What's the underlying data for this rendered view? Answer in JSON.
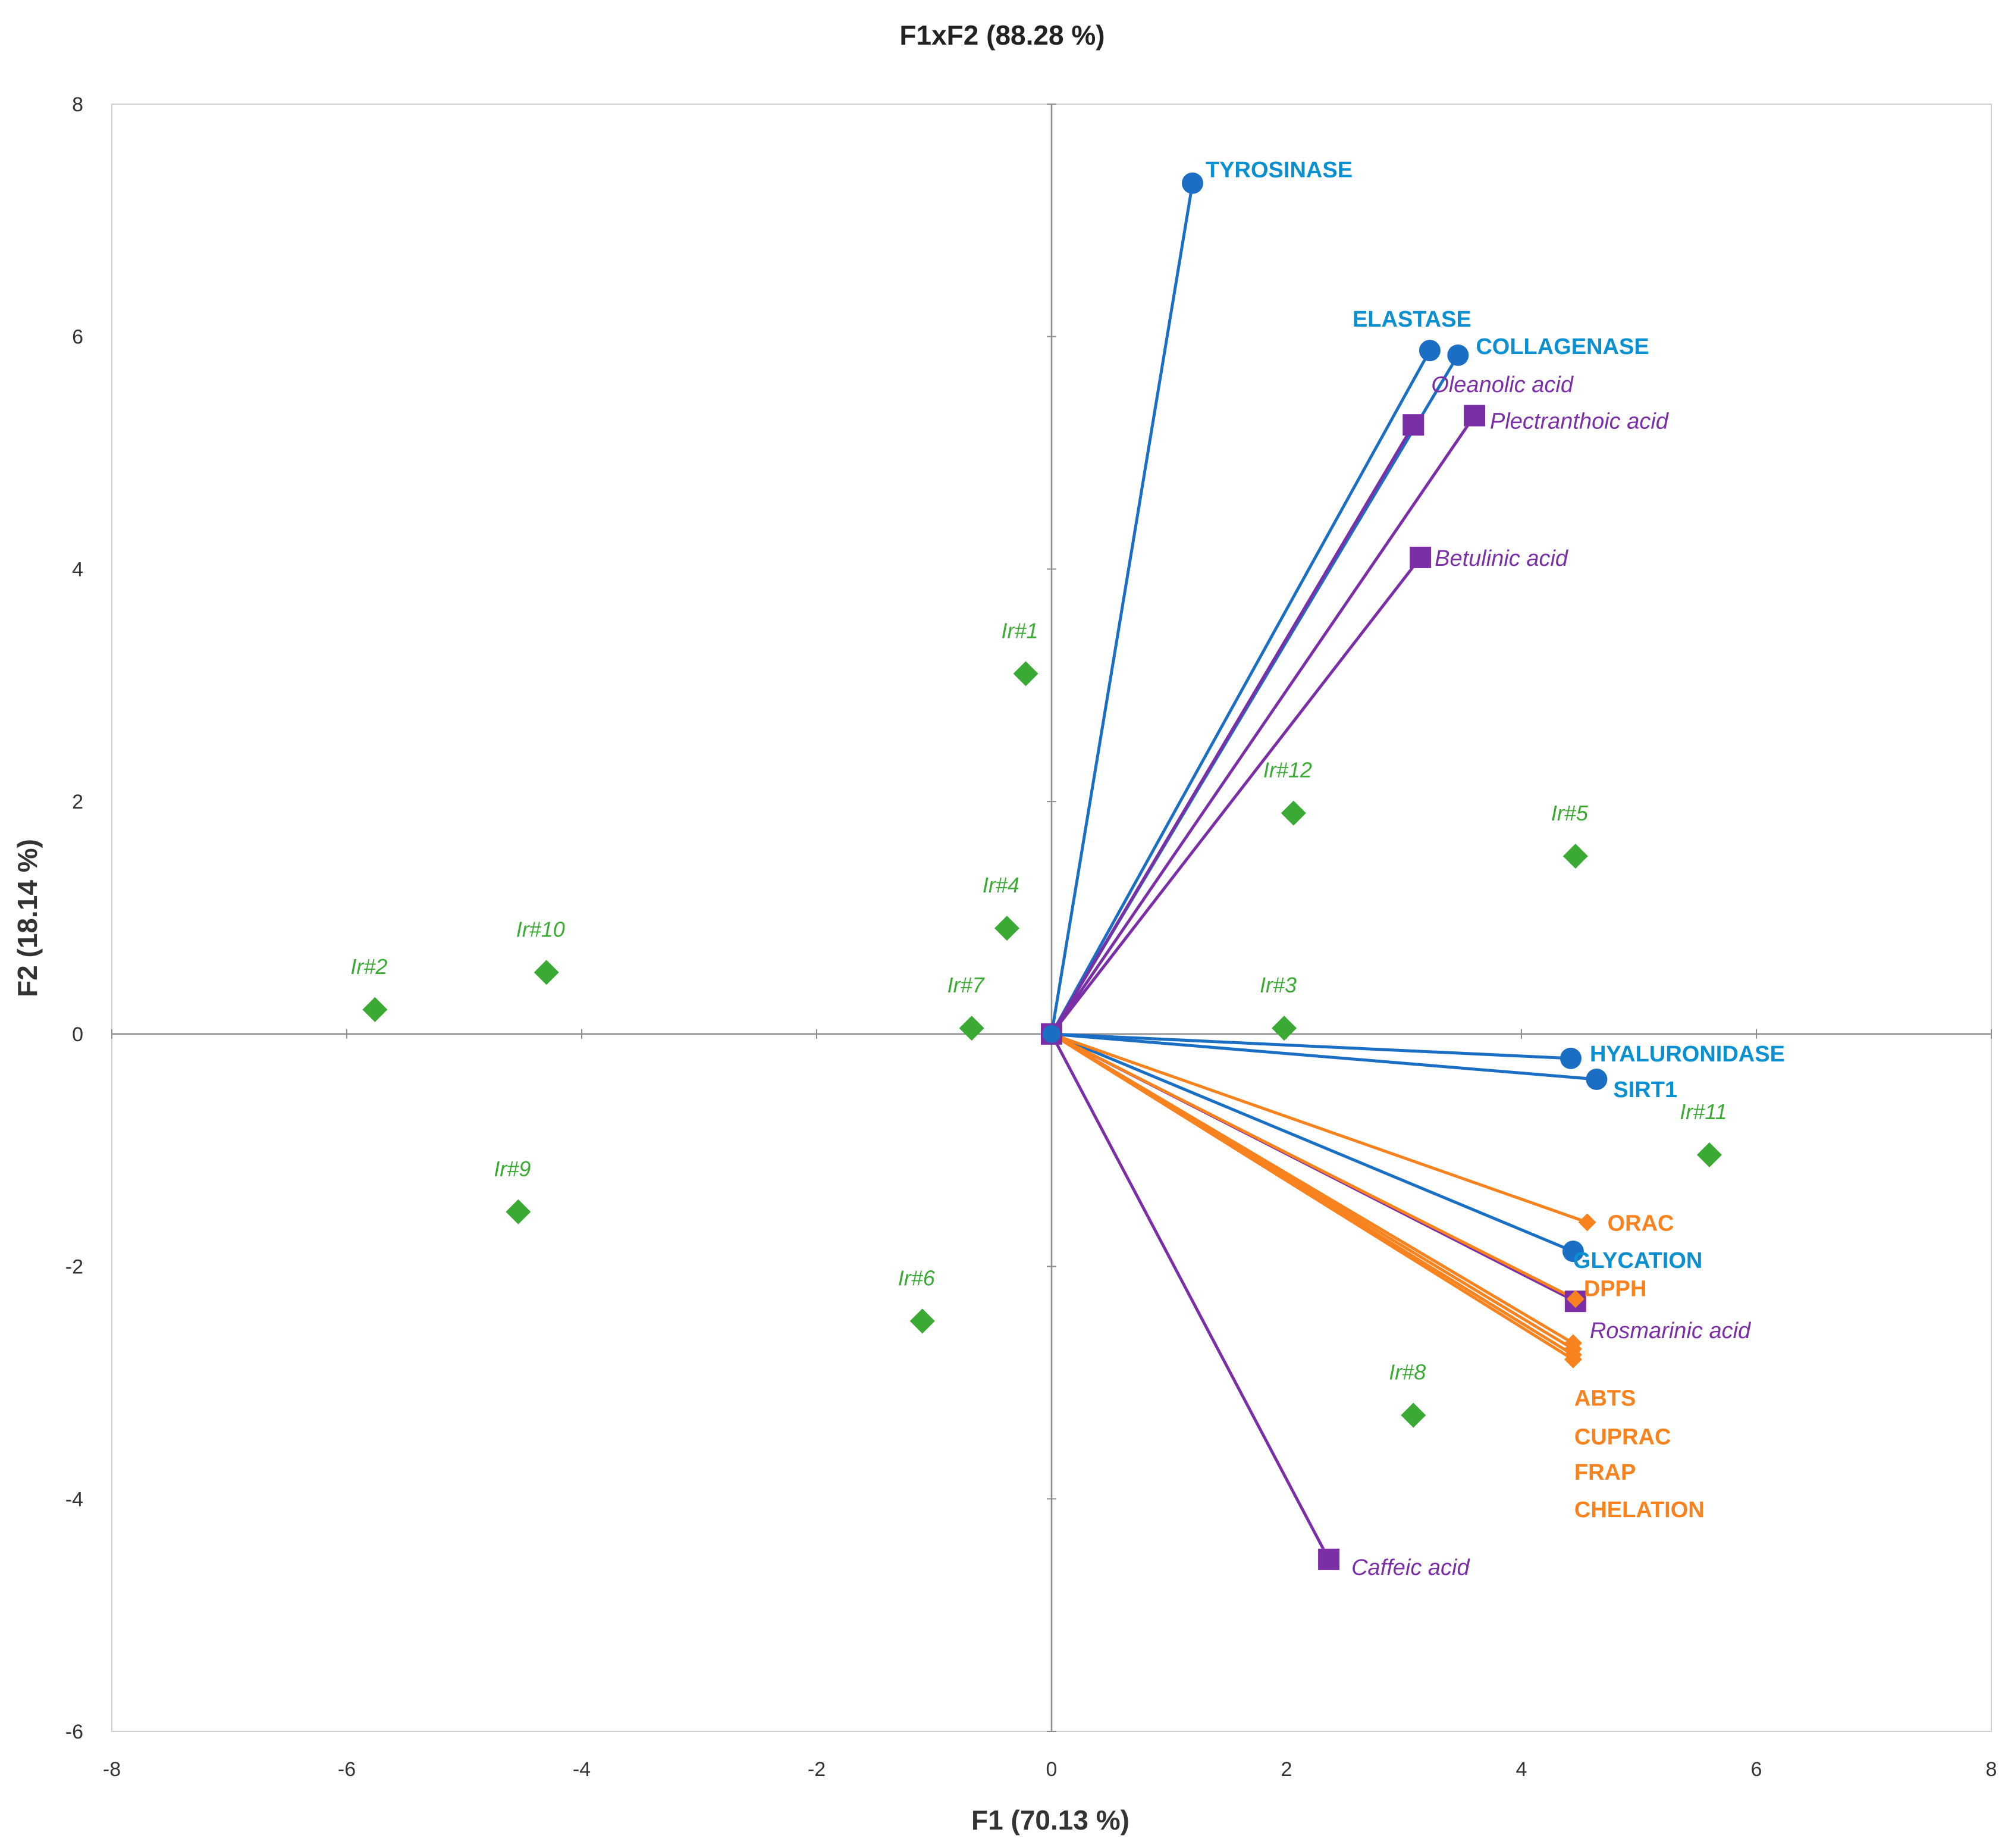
{
  "chart_data": {
    "type": "scatter",
    "title": "F1xF2 (88.28 %)",
    "xlabel": "F1 (70.13 %)",
    "ylabel": "F2 (18.14 %)",
    "xlim": [
      -8,
      8
    ],
    "ylim": [
      -6,
      8
    ],
    "xticks": [
      "-8",
      "-6",
      "-4",
      "-2",
      "0",
      "2",
      "4",
      "6",
      "8"
    ],
    "yticks": [
      "8",
      "6",
      "4",
      "2",
      "0",
      "-2",
      "-4",
      "-6"
    ],
    "grid": false,
    "colors": {
      "enzymes": "#1a6fc4",
      "enzyme_label": "#0a8fd0",
      "compounds": "#7b2fa6",
      "antioxidants": "#f7821e",
      "samples": "#3aaa35"
    },
    "vectors": [
      {
        "group": "enzymes",
        "label": "TYROSINASE",
        "x": 1.2,
        "y": 7.32,
        "marker": "circle"
      },
      {
        "group": "enzymes",
        "label": "ELASTASE",
        "x": 3.22,
        "y": 5.88,
        "marker": "circle"
      },
      {
        "group": "enzymes",
        "label": "COLLAGENASE",
        "x": 3.46,
        "y": 5.84,
        "marker": "circle"
      },
      {
        "group": "enzymes",
        "label": "HYALURONIDASE",
        "x": 4.42,
        "y": -0.21,
        "marker": "circle"
      },
      {
        "group": "enzymes",
        "label": "SIRT1",
        "x": 4.64,
        "y": -0.39,
        "marker": "circle"
      },
      {
        "group": "enzymes",
        "label": "GLYCATION",
        "x": 4.44,
        "y": -1.87,
        "marker": "circle"
      },
      {
        "group": "compounds",
        "label": "Oleanolic acid",
        "x": 3.08,
        "y": 5.24,
        "marker": "square"
      },
      {
        "group": "compounds",
        "label": "Plectranthoic acid",
        "x": 3.6,
        "y": 5.32,
        "marker": "square"
      },
      {
        "group": "compounds",
        "label": "Betulinic acid",
        "x": 3.14,
        "y": 4.1,
        "marker": "square"
      },
      {
        "group": "compounds",
        "label": "Rosmarinic acid",
        "x": 4.46,
        "y": -2.3,
        "marker": "square"
      },
      {
        "group": "compounds",
        "label": "Caffeic acid",
        "x": 2.36,
        "y": -4.52,
        "marker": "square"
      },
      {
        "group": "antioxidants",
        "label": "ORAC",
        "x": 4.56,
        "y": -1.62,
        "marker": "diamond"
      },
      {
        "group": "antioxidants",
        "label": "DPPH",
        "x": 4.46,
        "y": -2.28,
        "marker": "diamond"
      },
      {
        "group": "antioxidants",
        "label": "ABTS",
        "x": 4.44,
        "y": -2.66,
        "marker": "diamond"
      },
      {
        "group": "antioxidants",
        "label": "CUPRAC",
        "x": 4.44,
        "y": -2.71,
        "marker": "diamond"
      },
      {
        "group": "antioxidants",
        "label": "FRAP",
        "x": 4.44,
        "y": -2.76,
        "marker": "diamond"
      },
      {
        "group": "antioxidants",
        "label": "CHELATION",
        "x": 4.44,
        "y": -2.8,
        "marker": "diamond"
      }
    ],
    "samples": [
      {
        "label": "Ir#1",
        "x": -0.22,
        "y": 3.1
      },
      {
        "label": "Ir#2",
        "x": -5.76,
        "y": 0.21
      },
      {
        "label": "Ir#3",
        "x": 1.98,
        "y": 0.05
      },
      {
        "label": "Ir#4",
        "x": -0.38,
        "y": 0.91
      },
      {
        "label": "Ir#5",
        "x": 4.46,
        "y": 1.53
      },
      {
        "label": "Ir#6",
        "x": -1.1,
        "y": -2.47
      },
      {
        "label": "Ir#7",
        "x": -0.68,
        "y": 0.05
      },
      {
        "label": "Ir#8",
        "x": 3.08,
        "y": -3.28
      },
      {
        "label": "Ir#9",
        "x": -4.54,
        "y": -1.53
      },
      {
        "label": "Ir#10",
        "x": -4.3,
        "y": 0.53
      },
      {
        "label": "Ir#11",
        "x": 5.6,
        "y": -1.04
      },
      {
        "label": "Ir#12",
        "x": 2.06,
        "y": 1.9
      }
    ]
  }
}
